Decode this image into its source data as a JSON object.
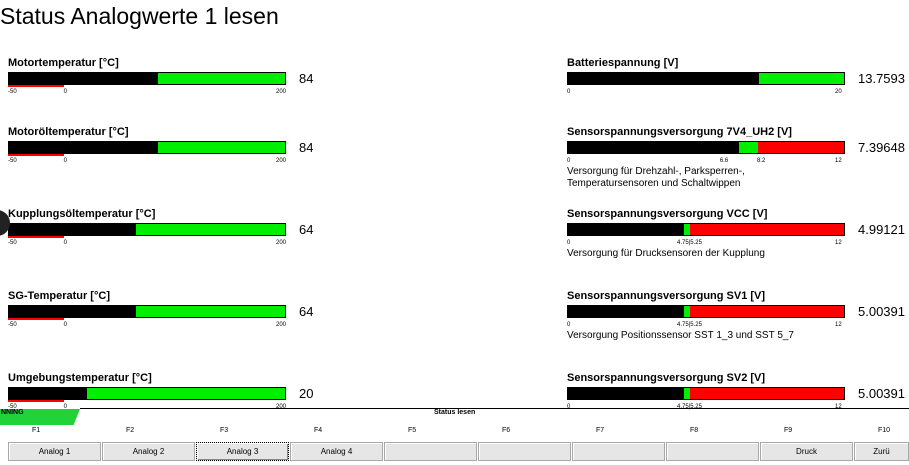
{
  "title": "Status Analogwerte 1 lesen",
  "colors": {
    "ok": "#00ee00",
    "warn": "#ff0000",
    "value": "#000000"
  },
  "gauges": [
    {
      "id": "motortemperatur",
      "label": "Motortemperatur [°C]",
      "min": -50,
      "max": 200,
      "value_text": "84",
      "value": 84,
      "zones": [
        {
          "from": -50,
          "to": 200,
          "color": "#00ee00"
        }
      ],
      "underline": {
        "from": -50,
        "to": 0,
        "color": "#ff0000"
      },
      "ticks": [
        {
          "v": -50,
          "t": "-50"
        },
        {
          "v": 0,
          "t": "0"
        },
        {
          "v": 200,
          "t": "200"
        }
      ]
    },
    {
      "id": "batteriespannung",
      "label": "Batteriespannung [V]",
      "min": 0,
      "max": 20,
      "value_text": "13.7593",
      "value": 13.7593,
      "zones": [
        {
          "from": 0,
          "to": 20,
          "color": "#00ee00"
        }
      ],
      "ticks": [
        {
          "v": 0,
          "t": "0"
        },
        {
          "v": 20,
          "t": "20"
        }
      ]
    },
    {
      "id": "motoroeltemperatur",
      "label": "Motoröltemperatur [°C]",
      "min": -50,
      "max": 200,
      "value_text": "84",
      "value": 84,
      "zones": [
        {
          "from": -50,
          "to": 200,
          "color": "#00ee00"
        }
      ],
      "underline": {
        "from": -50,
        "to": 0,
        "color": "#ff0000"
      },
      "ticks": [
        {
          "v": -50,
          "t": "-50"
        },
        {
          "v": 0,
          "t": "0"
        },
        {
          "v": 200,
          "t": "200"
        }
      ]
    },
    {
      "id": "sensorspannung-7v4",
      "label": "Sensorspannungsversorgung 7V4_UH2 [V]",
      "min": 0,
      "max": 12,
      "value_text": "7.39648",
      "value": 7.39648,
      "zones": [
        {
          "from": 0,
          "to": 6.6,
          "color": "#ff0000"
        },
        {
          "from": 6.6,
          "to": 8.2,
          "color": "#00ee00"
        },
        {
          "from": 8.2,
          "to": 12,
          "color": "#ff0000"
        }
      ],
      "ticks": [
        {
          "v": 0,
          "t": "0"
        },
        {
          "v": 6.6,
          "t": "6.6"
        },
        {
          "v": 8.2,
          "t": "8.2"
        },
        {
          "v": 12,
          "t": "12"
        }
      ],
      "description": [
        "Versorgung für Drehzahl-, Parksperren-,",
        "Temperatursensoren und Schaltwippen"
      ]
    },
    {
      "id": "kupplungsoeltemperatur",
      "label": "Kupplungsöltemperatur [°C]",
      "min": -50,
      "max": 200,
      "value_text": "64",
      "value": 64,
      "zones": [
        {
          "from": -50,
          "to": 200,
          "color": "#00ee00"
        }
      ],
      "underline": {
        "from": -50,
        "to": 0,
        "color": "#ff0000"
      },
      "ticks": [
        {
          "v": -50,
          "t": "-50"
        },
        {
          "v": 0,
          "t": "0"
        },
        {
          "v": 200,
          "t": "200"
        }
      ]
    },
    {
      "id": "sensorspannung-vcc",
      "label": "Sensorspannungsversorgung VCC [V]",
      "min": 0,
      "max": 12,
      "value_text": "4.99121",
      "value": 4.99121,
      "zones": [
        {
          "from": 0,
          "to": 4.75,
          "color": "#ff0000"
        },
        {
          "from": 4.75,
          "to": 5.25,
          "color": "#00ee00"
        },
        {
          "from": 5.25,
          "to": 12,
          "color": "#ff0000"
        }
      ],
      "ticks": [
        {
          "v": 0,
          "t": "0"
        },
        {
          "v": 4.75,
          "t": "4.75|5.25"
        },
        {
          "v": 12,
          "t": "12"
        }
      ],
      "description": [
        "Versorgung für Drucksensoren der Kupplung"
      ]
    },
    {
      "id": "sg-temperatur",
      "label": "SG-Temperatur [°C]",
      "min": -50,
      "max": 200,
      "value_text": "64",
      "value": 64,
      "zones": [
        {
          "from": -50,
          "to": 200,
          "color": "#00ee00"
        }
      ],
      "underline": {
        "from": -50,
        "to": 0,
        "color": "#ff0000"
      },
      "ticks": [
        {
          "v": -50,
          "t": "-50"
        },
        {
          "v": 0,
          "t": "0"
        },
        {
          "v": 200,
          "t": "200"
        }
      ]
    },
    {
      "id": "sensorspannung-sv1",
      "label": "Sensorspannungsversorgung SV1 [V]",
      "min": 0,
      "max": 12,
      "value_text": "5.00391",
      "value": 5.00391,
      "zones": [
        {
          "from": 0,
          "to": 4.75,
          "color": "#ff0000"
        },
        {
          "from": 4.75,
          "to": 5.25,
          "color": "#00ee00"
        },
        {
          "from": 5.25,
          "to": 12,
          "color": "#ff0000"
        }
      ],
      "ticks": [
        {
          "v": 0,
          "t": "0"
        },
        {
          "v": 4.75,
          "t": "4.75|5.25"
        },
        {
          "v": 12,
          "t": "12"
        }
      ],
      "description": [
        "Versorgung Positionssensor SST 1_3 und SST 5_7"
      ]
    },
    {
      "id": "umgebungstemperatur",
      "label": "Umgebungstemperatur [°C]",
      "min": -50,
      "max": 200,
      "value_text": "20",
      "value": 20,
      "zones": [
        {
          "from": -50,
          "to": 200,
          "color": "#00ee00"
        }
      ],
      "underline": {
        "from": -50,
        "to": 0,
        "color": "#ff0000"
      },
      "ticks": [
        {
          "v": -50,
          "t": "-50"
        },
        {
          "v": 0,
          "t": "0"
        },
        {
          "v": 200,
          "t": "200"
        }
      ]
    },
    {
      "id": "sensorspannung-sv2",
      "label": "Sensorspannungsversorgung SV2 [V]",
      "min": 0,
      "max": 12,
      "value_text": "5.00391",
      "value": 5.00391,
      "zones": [
        {
          "from": 0,
          "to": 4.75,
          "color": "#ff0000"
        },
        {
          "from": 4.75,
          "to": 5.25,
          "color": "#00ee00"
        },
        {
          "from": 5.25,
          "to": 12,
          "color": "#ff0000"
        }
      ],
      "ticks": [
        {
          "v": 0,
          "t": "0"
        },
        {
          "v": 4.75,
          "t": "4.75|5.25"
        },
        {
          "v": 12,
          "t": "12"
        }
      ]
    }
  ],
  "statusbar": {
    "running_text": "NNING",
    "caption": "Status lesen"
  },
  "fkeys": [
    "F1",
    "F2",
    "F3",
    "F4",
    "F5",
    "F6",
    "F7",
    "F8",
    "F9",
    "F10"
  ],
  "softkeys": [
    {
      "label": "Analog 1",
      "active": false
    },
    {
      "label": "Analog 2",
      "active": false
    },
    {
      "label": "Analog 3",
      "active": true
    },
    {
      "label": "Analog 4",
      "active": false
    },
    {
      "label": "",
      "active": false
    },
    {
      "label": "",
      "active": false
    },
    {
      "label": "",
      "active": false
    },
    {
      "label": "",
      "active": false
    },
    {
      "label": "Druck",
      "active": false
    },
    {
      "label": "Zurü",
      "active": false
    }
  ]
}
